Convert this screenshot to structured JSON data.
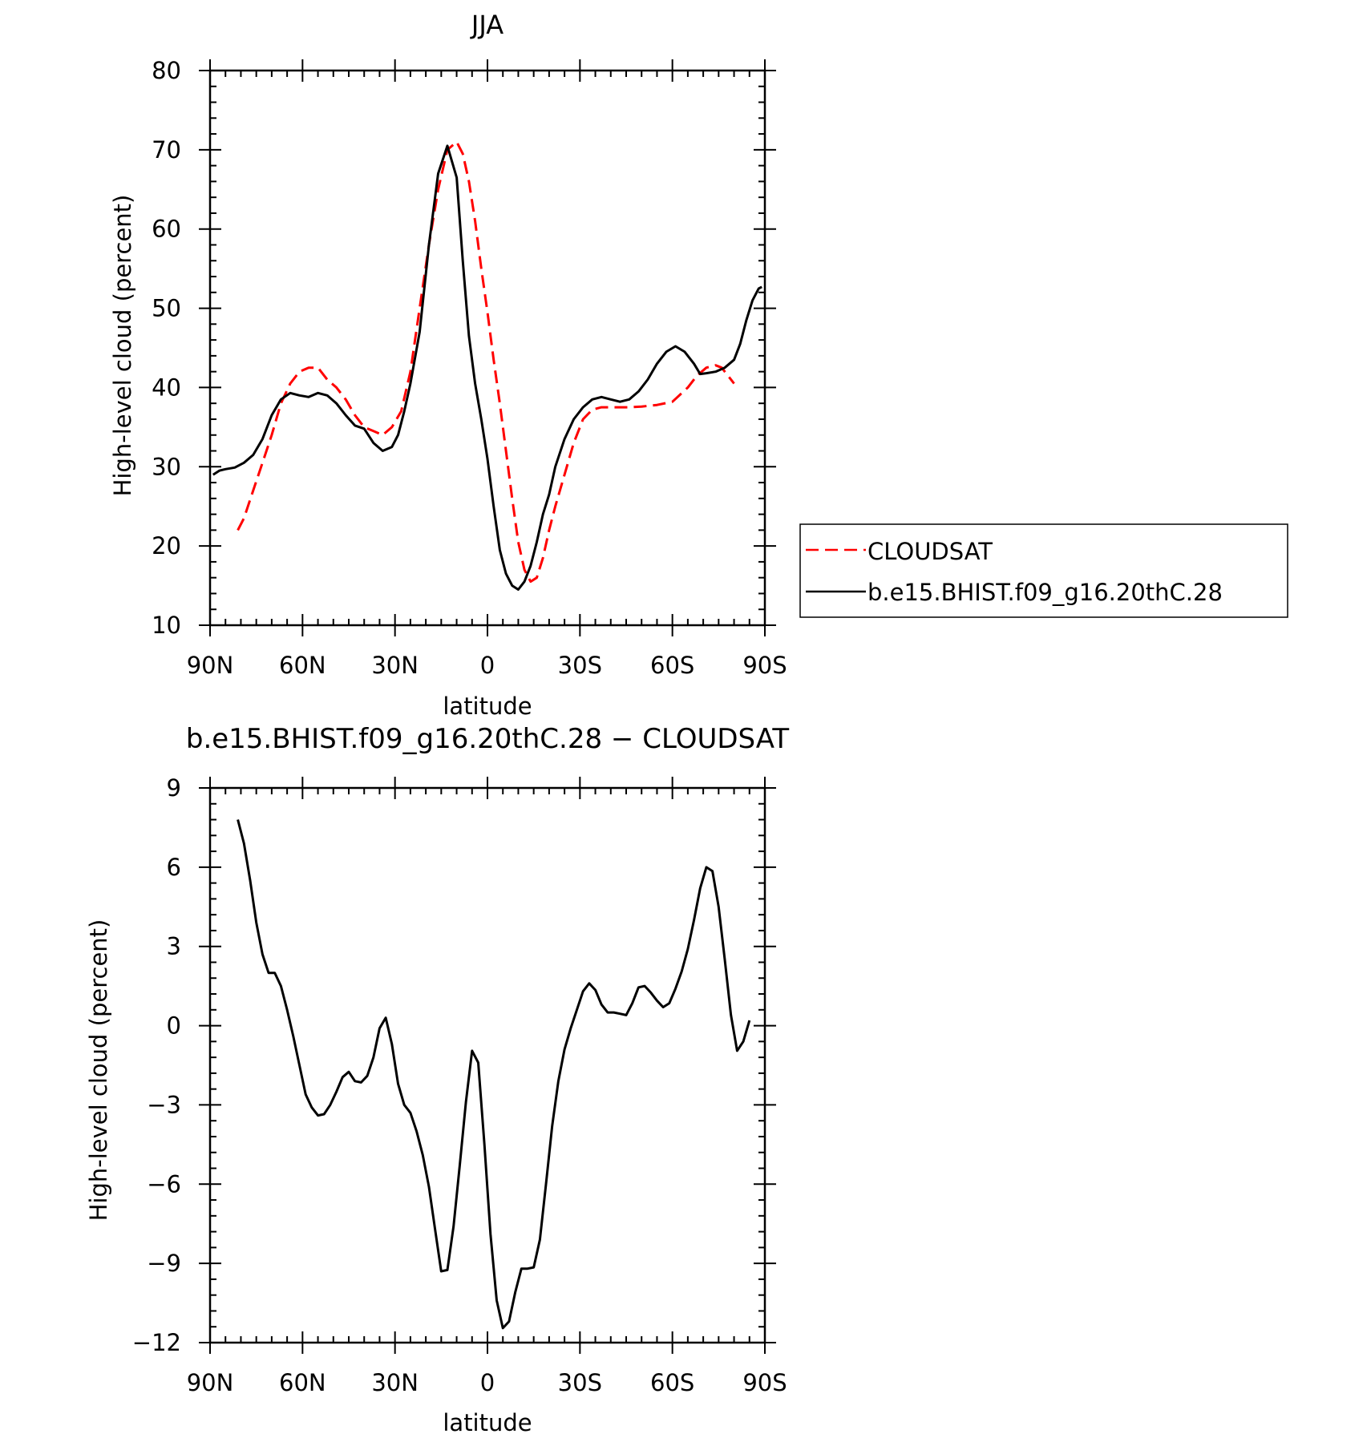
{
  "chart_data": [
    {
      "type": "line",
      "title": "JJA",
      "xlabel": "latitude",
      "ylabel": "High-level cloud (percent)",
      "xlim": [
        90,
        -90
      ],
      "ylim": [
        10,
        80
      ],
      "x_ticks": [
        90,
        60,
        30,
        0,
        -30,
        -60,
        -90
      ],
      "x_tick_labels": [
        "90N",
        "60N",
        "30N",
        "0",
        "30S",
        "60S",
        "90S"
      ],
      "y_ticks": [
        10,
        20,
        30,
        40,
        50,
        60,
        70,
        80
      ],
      "y_tick_labels": [
        "10",
        "20",
        "30",
        "40",
        "50",
        "60",
        "70",
        "80"
      ],
      "grid": false,
      "legend_position": "right",
      "series": [
        {
          "name": "CLOUDSAT",
          "color": "#ff0000",
          "style": "dashed",
          "x": [
            81,
            79,
            76,
            73,
            70,
            67,
            64,
            61,
            58,
            55,
            52,
            49,
            46,
            43,
            40,
            37,
            34,
            31,
            28,
            25,
            22,
            19,
            16,
            13,
            10,
            8,
            6,
            4,
            2,
            0,
            -2,
            -4,
            -6,
            -8,
            -10,
            -12,
            -14,
            -16,
            -18,
            -20,
            -22,
            -25,
            -28,
            -31,
            -34,
            -37,
            -40,
            -43,
            -46,
            -50,
            -55,
            -60,
            -65,
            -68,
            -71,
            -74,
            -76,
            -78,
            -80
          ],
          "y": [
            22.0,
            23.5,
            27.0,
            30.5,
            34.0,
            38.0,
            40.5,
            42.0,
            42.5,
            42.5,
            41.0,
            40.0,
            38.5,
            36.5,
            35.0,
            34.5,
            34.0,
            35.0,
            37.0,
            42.0,
            50.0,
            58.0,
            65.0,
            70.0,
            71.0,
            69.5,
            66.0,
            61.0,
            55.0,
            49.5,
            43.5,
            38.0,
            32.0,
            26.0,
            20.5,
            17.0,
            15.5,
            16.0,
            18.5,
            22.0,
            25.0,
            29.0,
            33.0,
            36.0,
            37.2,
            37.5,
            37.5,
            37.5,
            37.5,
            37.6,
            37.8,
            38.2,
            40.0,
            41.5,
            42.5,
            42.8,
            42.5,
            41.5,
            40.5
          ]
        },
        {
          "name": "b.e15.BHIST.f09_g16.20thC.28",
          "color": "#000000",
          "style": "solid",
          "x": [
            89,
            87,
            85,
            82,
            79,
            76,
            73,
            70,
            67,
            64,
            61,
            58,
            55,
            52,
            49,
            46,
            43,
            40,
            37,
            34,
            31,
            29,
            27,
            25,
            22,
            19,
            16,
            13,
            10,
            8,
            6,
            4,
            2,
            0,
            -2,
            -4,
            -6,
            -8,
            -10,
            -12,
            -14,
            -16,
            -18,
            -20,
            -22,
            -25,
            -28,
            -31,
            -34,
            -37,
            -40,
            -43,
            -46,
            -49,
            -52,
            -55,
            -58,
            -61,
            -64,
            -67,
            -69,
            -71,
            -74,
            -77,
            -80,
            -82,
            -84,
            -86,
            -88,
            -89
          ],
          "y": [
            29.0,
            29.5,
            29.7,
            29.9,
            30.5,
            31.5,
            33.5,
            36.5,
            38.5,
            39.3,
            39.0,
            38.8,
            39.3,
            39.0,
            38.0,
            36.5,
            35.2,
            34.8,
            33.0,
            32.0,
            32.5,
            34.0,
            37.0,
            40.5,
            47.0,
            58.0,
            67.0,
            70.5,
            66.5,
            56.0,
            46.5,
            40.5,
            36.0,
            31.0,
            25.0,
            19.5,
            16.5,
            15.0,
            14.5,
            15.5,
            17.5,
            20.5,
            24.0,
            26.5,
            30.0,
            33.5,
            36.0,
            37.5,
            38.5,
            38.8,
            38.5,
            38.2,
            38.5,
            39.5,
            41.0,
            43.0,
            44.5,
            45.2,
            44.5,
            43.0,
            41.7,
            41.8,
            42.0,
            42.5,
            43.5,
            45.5,
            48.5,
            51.0,
            52.5,
            52.7
          ]
        }
      ]
    },
    {
      "type": "line",
      "title": "b.e15.BHIST.f09_g16.20thC.28 − CLOUDSAT",
      "xlabel": "latitude",
      "ylabel": "High-level cloud (percent)",
      "xlim": [
        90,
        -90
      ],
      "ylim": [
        -12,
        9
      ],
      "x_ticks": [
        90,
        60,
        30,
        0,
        -30,
        -60,
        -90
      ],
      "x_tick_labels": [
        "90N",
        "60N",
        "30N",
        "0",
        "30S",
        "60S",
        "90S"
      ],
      "y_ticks": [
        -12,
        -9,
        -6,
        -3,
        0,
        3,
        6,
        9
      ],
      "y_tick_labels": [
        "−12",
        "−9",
        "−6",
        "−3",
        "0",
        "3",
        "6",
        "9"
      ],
      "grid": false,
      "series": [
        {
          "color": "#000000",
          "style": "solid",
          "x": [
            81,
            79,
            77,
            75,
            73,
            71,
            69,
            67,
            65,
            63,
            61,
            59,
            57,
            55,
            53,
            51,
            49,
            47,
            45,
            43,
            41,
            39,
            37,
            35,
            33,
            31,
            29,
            27,
            25,
            23,
            21,
            19,
            17,
            15,
            13,
            11,
            9,
            7,
            5,
            3,
            1,
            -1,
            -3,
            -5,
            -7,
            -9,
            -11,
            -13,
            -15,
            -17,
            -19,
            -21,
            -23,
            -25,
            -27,
            -29,
            -31,
            -33,
            -35,
            -37,
            -39,
            -41,
            -43,
            -45,
            -47,
            -49,
            -51,
            -53,
            -55,
            -57,
            -59,
            -61,
            -63,
            -65,
            -67,
            -69,
            -71,
            -73,
            -75,
            -77,
            -79,
            -81
          ],
          "y": [
            7.8,
            6.9,
            5.5,
            3.9,
            2.7,
            2.0,
            2.0,
            1.5,
            0.6,
            -0.4,
            -1.5,
            -2.6,
            -3.1,
            -3.4,
            -3.35,
            -3.0,
            -2.5,
            -1.95,
            -1.75,
            -2.1,
            -2.15,
            -1.9,
            -1.2,
            -0.1,
            0.3,
            -0.7,
            -2.2,
            -3.0,
            -3.3,
            -4.0,
            -4.9,
            -6.1,
            -7.7,
            -9.3,
            -9.25,
            -7.6,
            -5.3,
            -2.9,
            -0.95,
            -1.4,
            -4.5,
            -7.9,
            -10.4,
            -11.45,
            -11.2,
            -10.1,
            -9.2,
            -9.2,
            -9.15,
            -8.1,
            -6.0,
            -3.8,
            -2.1,
            -0.9,
            -0.1,
            0.6,
            1.3,
            1.6,
            1.35,
            0.8,
            0.5,
            0.5,
            0.45,
            0.4,
            0.85,
            1.45,
            1.5,
            1.25,
            0.95,
            0.7,
            0.85,
            1.4,
            2.05,
            2.9,
            4.0,
            5.2,
            6.0,
            5.85,
            4.5,
            2.5,
            0.4,
            -0.95
          ]
        }
      ]
    }
  ],
  "extra_tail": {
    "x": [
      -83,
      -85
    ],
    "y": [
      -0.6,
      0.2
    ]
  }
}
